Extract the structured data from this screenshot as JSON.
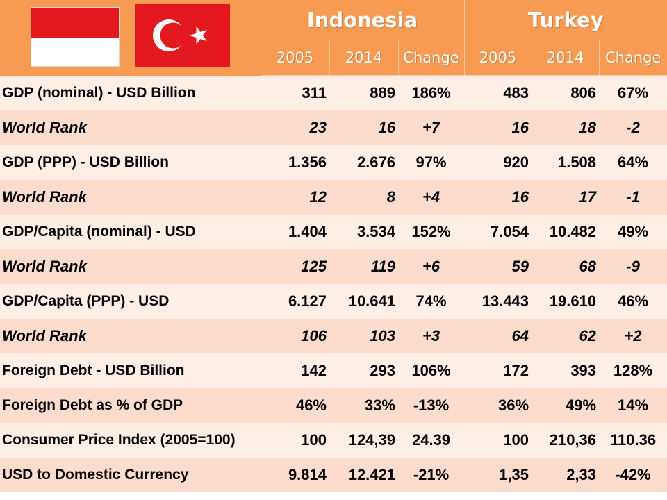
{
  "header": {
    "countries": [
      "Indonesia",
      "Turkey"
    ],
    "columns": [
      "2005",
      "2014",
      "Change",
      "2005",
      "2014",
      "Change"
    ]
  },
  "flags": [
    {
      "country": "Indonesia",
      "colors": [
        "#e4181f",
        "#ffffff"
      ]
    },
    {
      "country": "Turkey",
      "colors": [
        "#e4181f",
        "#ffffff"
      ],
      "icon": "crescent-star-icon"
    }
  ],
  "rows": [
    {
      "label": "GDP (nominal) - USD Billion",
      "rank": false,
      "values": [
        "311",
        "889",
        "186%",
        "483",
        "806",
        "67%"
      ]
    },
    {
      "label": "World Rank",
      "rank": true,
      "values": [
        "23",
        "16",
        "+7",
        "16",
        "18",
        "-2"
      ]
    },
    {
      "label": "GDP (PPP) - USD Billion",
      "rank": false,
      "values": [
        "1.356",
        "2.676",
        "97%",
        "920",
        "1.508",
        "64%"
      ]
    },
    {
      "label": "World Rank",
      "rank": true,
      "values": [
        "12",
        "8",
        "+4",
        "16",
        "17",
        "-1"
      ]
    },
    {
      "label": "GDP/Capita (nominal) - USD",
      "rank": false,
      "values": [
        "1.404",
        "3.534",
        "152%",
        "7.054",
        "10.482",
        "49%"
      ]
    },
    {
      "label": "World Rank",
      "rank": true,
      "values": [
        "125",
        "119",
        "+6",
        "59",
        "68",
        "-9"
      ]
    },
    {
      "label": "GDP/Capita (PPP) - USD",
      "rank": false,
      "values": [
        "6.127",
        "10.641",
        "74%",
        "13.443",
        "19.610",
        "46%"
      ]
    },
    {
      "label": "World Rank",
      "rank": true,
      "values": [
        "106",
        "103",
        "+3",
        "64",
        "62",
        "+2"
      ]
    },
    {
      "label": "Foreign Debt - USD Billion",
      "rank": false,
      "values": [
        "142",
        "293",
        "106%",
        "172",
        "393",
        "128%"
      ]
    },
    {
      "label": "Foreign Debt as % of GDP",
      "rank": false,
      "values": [
        "46%",
        "33%",
        "-13%",
        "36%",
        "49%",
        "14%"
      ]
    },
    {
      "label": "Consumer Price Index (2005=100)",
      "rank": false,
      "values": [
        "100",
        "124,39",
        "24.39",
        "100",
        "210,36",
        "110.36"
      ]
    },
    {
      "label": "USD to Domestic Currency",
      "rank": false,
      "values": [
        "9.814",
        "12.421",
        "-21%",
        "1,35",
        "2,33",
        "-42%"
      ]
    }
  ]
}
